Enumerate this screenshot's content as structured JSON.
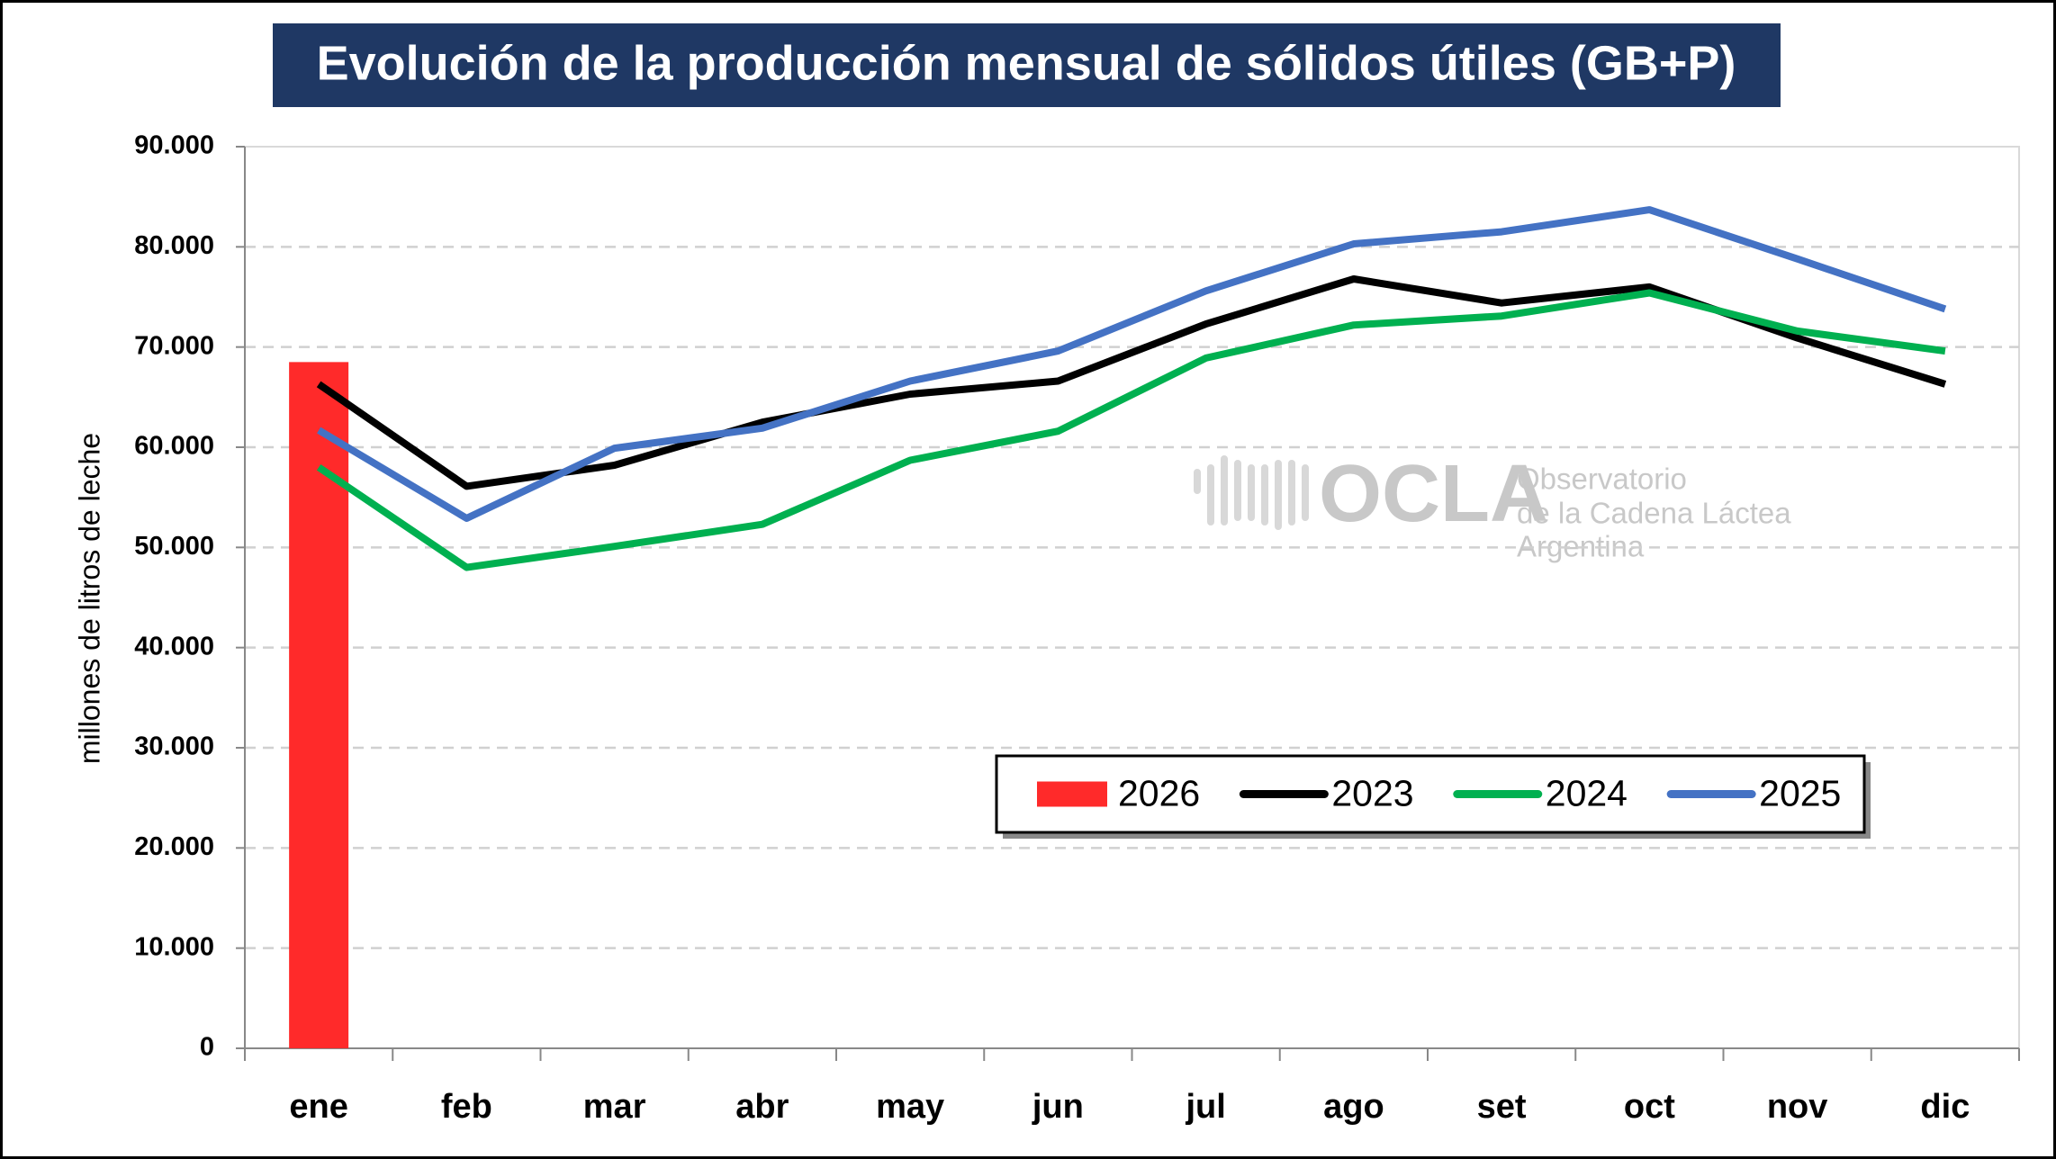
{
  "chart_data": {
    "type": "line",
    "title": "Evolución de la producción mensual de sólidos útiles (GB+P)",
    "y_label": "millones de litros de leche",
    "categories": [
      "ene",
      "feb",
      "mar",
      "abr",
      "may",
      "jun",
      "jul",
      "ago",
      "set",
      "oct",
      "nov",
      "dic"
    ],
    "series": [
      {
        "name": "2026",
        "kind": "bar",
        "color": "#ff2a2a",
        "values": [
          68500,
          null,
          null,
          null,
          null,
          null,
          null,
          null,
          null,
          null,
          null,
          null
        ]
      },
      {
        "name": "2023",
        "kind": "line",
        "color": "#000000",
        "values": [
          66300,
          56100,
          58200,
          62500,
          65300,
          66600,
          72300,
          76800,
          74400,
          76000,
          70900,
          66300
        ]
      },
      {
        "name": "2024",
        "kind": "line",
        "color": "#00b050",
        "values": [
          58000,
          48000,
          50100,
          52300,
          58700,
          61600,
          68900,
          72200,
          73100,
          75400,
          71600,
          69600
        ]
      },
      {
        "name": "2025",
        "kind": "line",
        "color": "#4472c4",
        "values": [
          61700,
          52900,
          59900,
          61900,
          66600,
          69600,
          75600,
          80300,
          81500,
          83700,
          78800,
          73800
        ]
      }
    ],
    "ylim": [
      0,
      90000
    ],
    "yticks": [
      0,
      {
        "value": 10000,
        "label": "10.000"
      },
      {
        "value": 20000,
        "label": "20.000"
      },
      {
        "value": 30000,
        "label": "30.000"
      },
      {
        "value": 40000,
        "label": "40.000"
      },
      {
        "value": 50000,
        "label": "50.000"
      },
      {
        "value": 60000,
        "label": "60.000"
      },
      {
        "value": 70000,
        "label": "70.000"
      },
      {
        "value": 80000,
        "label": "80.000"
      },
      {
        "value": 90000,
        "label": "90.000"
      }
    ],
    "grid": true,
    "legend": "bottom-right",
    "watermark": {
      "logo": "OCLA",
      "lines": [
        "Observatorio",
        "de la Cadena Láctea",
        "Argentina"
      ]
    }
  }
}
